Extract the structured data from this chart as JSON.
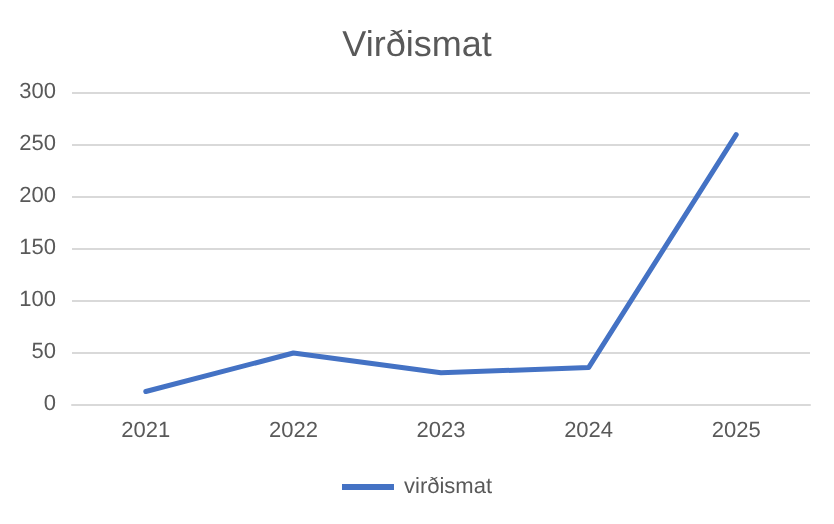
{
  "chart_data": {
    "type": "line",
    "title": "Virðismat",
    "categories": [
      "2021",
      "2022",
      "2023",
      "2024",
      "2025"
    ],
    "series": [
      {
        "name": "virðismat",
        "color": "#4472c4",
        "values": [
          12,
          49,
          30,
          35,
          259
        ]
      }
    ],
    "ylim": [
      0,
      300
    ],
    "yticks": [
      0,
      50,
      100,
      150,
      200,
      250,
      300
    ],
    "grid": "y",
    "legend": "bottom",
    "marker": "none",
    "line_style": "solid"
  }
}
